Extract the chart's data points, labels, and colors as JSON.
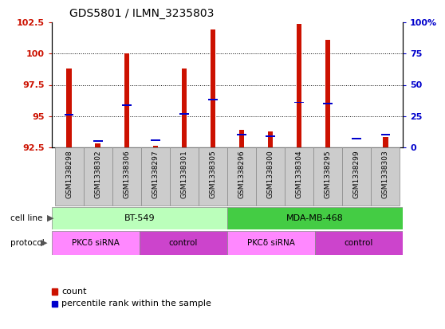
{
  "title": "GDS5801 / ILMN_3235803",
  "samples": [
    "GSM1338298",
    "GSM1338302",
    "GSM1338306",
    "GSM1338297",
    "GSM1338301",
    "GSM1338305",
    "GSM1338296",
    "GSM1338300",
    "GSM1338304",
    "GSM1338295",
    "GSM1338299",
    "GSM1338303"
  ],
  "red_values": [
    98.8,
    92.8,
    100.0,
    92.6,
    98.8,
    101.9,
    93.9,
    93.8,
    102.4,
    101.1,
    92.5,
    93.3
  ],
  "blue_values": [
    95.1,
    93.0,
    95.9,
    93.1,
    95.2,
    96.3,
    93.5,
    93.4,
    96.1,
    96.0,
    93.2,
    93.5
  ],
  "ylim_left": [
    92.5,
    102.5
  ],
  "yticks_left": [
    92.5,
    95.0,
    97.5,
    100.0,
    102.5
  ],
  "yticks_right_pct": [
    0,
    25,
    50,
    75,
    100
  ],
  "yticks_right_labels": [
    "0",
    "25",
    "50",
    "75",
    "100%"
  ],
  "bar_color": "#cc1100",
  "dot_color": "#0000cc",
  "bg_color": "#ffffff",
  "sample_box_color": "#cccccc",
  "left_label_color": "#cc1100",
  "right_label_color": "#0000cc",
  "cell_line_label": "cell line",
  "protocol_label": "protocol",
  "legend_count": "count",
  "legend_percentile": "percentile rank within the sample",
  "cell_groups": [
    {
      "label": "BT-549",
      "start": 0,
      "end": 6,
      "color": "#bbffbb"
    },
    {
      "label": "MDA-MB-468",
      "start": 6,
      "end": 12,
      "color": "#44cc44"
    }
  ],
  "proto_groups": [
    {
      "label": "PKCδ siRNA",
      "start": 0,
      "end": 3,
      "color": "#ff88ff"
    },
    {
      "label": "control",
      "start": 3,
      "end": 6,
      "color": "#cc44cc"
    },
    {
      "label": "PKCδ siRNA",
      "start": 6,
      "end": 9,
      "color": "#ff88ff"
    },
    {
      "label": "control",
      "start": 9,
      "end": 12,
      "color": "#cc44cc"
    }
  ]
}
